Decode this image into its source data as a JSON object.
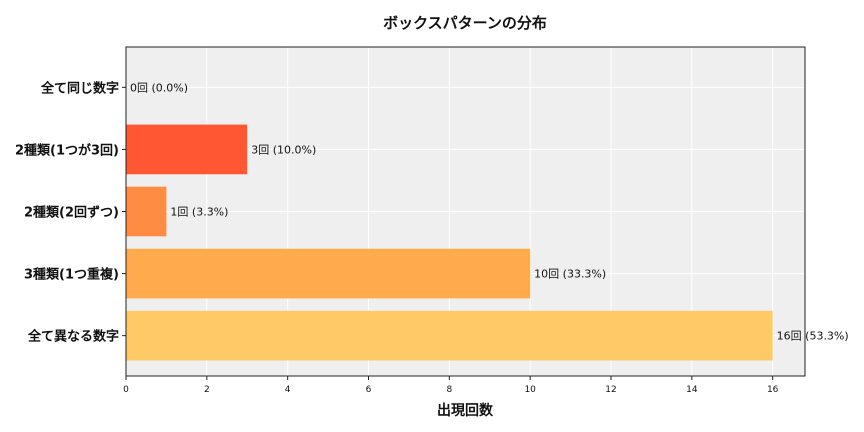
{
  "chart_data": {
    "type": "bar",
    "orientation": "horizontal",
    "title": "ボックスパターンの分布",
    "xlabel": "出現回数",
    "ylabel": "",
    "categories": [
      "全て同じ数字",
      "2種類(1つが3回)",
      "2種類(2回ずつ)",
      "3種類(1つ重複)",
      "全て異なる数字"
    ],
    "values": [
      0,
      3,
      1,
      10,
      16
    ],
    "data_labels": [
      "0回 (0.0%)",
      "3回 (10.0%)",
      "1回 (3.3%)",
      "10回 (33.3%)",
      "16回 (53.3%)"
    ],
    "colors": [
      "#FF5733",
      "#FF5733",
      "#FF8C42",
      "#FFAA4C",
      "#FFC966"
    ],
    "xlim": [
      0,
      16.8
    ],
    "xticks": [
      0,
      2,
      4,
      6,
      8,
      10,
      12,
      14,
      16
    ],
    "grid": true,
    "background": "#EFEFEF"
  }
}
